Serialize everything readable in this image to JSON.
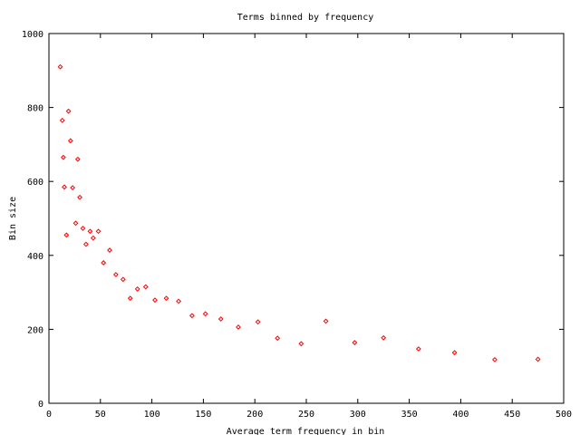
{
  "chart_data": {
    "type": "scatter",
    "title": "Terms binned by frequency",
    "xlabel": "Average term frequency in bin",
    "ylabel": "Bin size",
    "xlim": [
      0,
      500
    ],
    "ylim": [
      0,
      1000
    ],
    "x_ticks": [
      0,
      50,
      100,
      150,
      200,
      250,
      300,
      350,
      400,
      450,
      500
    ],
    "y_ticks": [
      0,
      200,
      400,
      600,
      800,
      1000
    ],
    "grid": false,
    "marker_color": "#ff0000",
    "points": [
      {
        "x": 11,
        "y": 910
      },
      {
        "x": 13,
        "y": 765
      },
      {
        "x": 14,
        "y": 665
      },
      {
        "x": 15,
        "y": 585
      },
      {
        "x": 17,
        "y": 455
      },
      {
        "x": 19,
        "y": 790
      },
      {
        "x": 21,
        "y": 710
      },
      {
        "x": 23,
        "y": 583
      },
      {
        "x": 26,
        "y": 487
      },
      {
        "x": 28,
        "y": 660
      },
      {
        "x": 30,
        "y": 557
      },
      {
        "x": 33,
        "y": 473
      },
      {
        "x": 36,
        "y": 430
      },
      {
        "x": 40,
        "y": 465
      },
      {
        "x": 43,
        "y": 447
      },
      {
        "x": 48,
        "y": 465
      },
      {
        "x": 53,
        "y": 380
      },
      {
        "x": 59,
        "y": 414
      },
      {
        "x": 65,
        "y": 348
      },
      {
        "x": 72,
        "y": 335
      },
      {
        "x": 79,
        "y": 284
      },
      {
        "x": 86,
        "y": 309
      },
      {
        "x": 94,
        "y": 315
      },
      {
        "x": 103,
        "y": 279
      },
      {
        "x": 114,
        "y": 284
      },
      {
        "x": 126,
        "y": 276
      },
      {
        "x": 139,
        "y": 237
      },
      {
        "x": 152,
        "y": 242
      },
      {
        "x": 167,
        "y": 228
      },
      {
        "x": 184,
        "y": 206
      },
      {
        "x": 203,
        "y": 220
      },
      {
        "x": 222,
        "y": 176
      },
      {
        "x": 245,
        "y": 161
      },
      {
        "x": 269,
        "y": 222
      },
      {
        "x": 297,
        "y": 164
      },
      {
        "x": 325,
        "y": 177
      },
      {
        "x": 359,
        "y": 147
      },
      {
        "x": 394,
        "y": 137
      },
      {
        "x": 433,
        "y": 118
      },
      {
        "x": 475,
        "y": 119
      }
    ]
  }
}
